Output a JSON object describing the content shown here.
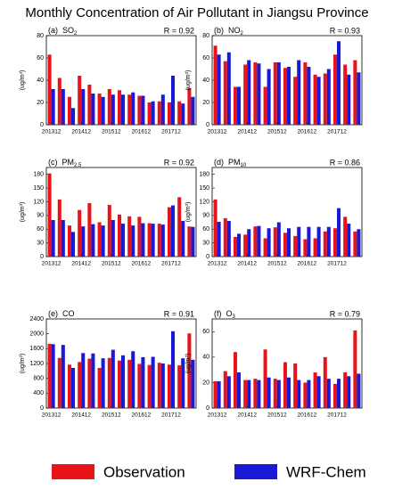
{
  "title": "Monthly Concentration of Air Pollutant in Jiangsu Province",
  "legend": [
    {
      "name": "Observation",
      "color": "#e8141b"
    },
    {
      "name": "WRF-Chem",
      "color": "#1a1ad6"
    }
  ],
  "chart_data": [
    {
      "type": "bar",
      "panel": "(a)",
      "species": "SO",
      "species_sub": "2",
      "r_label": "R = 0.92",
      "y_label": "(ug/m³)",
      "categories": [
        "201312",
        null,
        null,
        "201412",
        null,
        null,
        "201512",
        null,
        null,
        "201612",
        null,
        null,
        "201712",
        null,
        null
      ],
      "series": [
        {
          "values": [
            63,
            42,
            25,
            44,
            36,
            28,
            32,
            31,
            27,
            26,
            20,
            21,
            20,
            21,
            33
          ]
        },
        {
          "values": [
            32,
            32,
            15,
            32,
            28,
            25,
            27,
            27,
            29,
            26,
            21,
            27,
            44,
            19,
            25
          ]
        }
      ],
      "ylim": [
        0,
        80
      ],
      "yticks": [
        0,
        20,
        40,
        60,
        80
      ]
    },
    {
      "type": "bar",
      "panel": "(b)",
      "species": "NO",
      "species_sub": "2",
      "r_label": "R = 0.93",
      "y_label": "(ug/m³)",
      "categories": [
        "201312",
        null,
        null,
        "201412",
        null,
        null,
        "201512",
        null,
        null,
        "201612",
        null,
        null,
        "201712",
        null,
        null
      ],
      "series": [
        {
          "values": [
            71,
            57,
            34,
            54,
            56,
            34,
            56,
            51,
            43,
            56,
            45,
            46,
            63,
            54,
            58
          ]
        },
        {
          "values": [
            63,
            65,
            34,
            58,
            55,
            50,
            56,
            52,
            58,
            52,
            43,
            50,
            75,
            45,
            47
          ]
        }
      ],
      "ylim": [
        0,
        80
      ],
      "yticks": [
        0,
        20,
        40,
        60,
        80
      ]
    },
    {
      "type": "bar",
      "panel": "(c)",
      "species": "PM",
      "species_sub": "2.5",
      "r_label": "R = 0.92",
      "y_label": "(ug/m³)",
      "categories": [
        "201312",
        null,
        null,
        "201412",
        null,
        null,
        "201512",
        null,
        null,
        "201612",
        null,
        null,
        "201712",
        null,
        null
      ],
      "series": [
        {
          "values": [
            182,
            125,
            68,
            102,
            117,
            75,
            113,
            92,
            88,
            87,
            73,
            72,
            108,
            130,
            66
          ]
        },
        {
          "values": [
            80,
            80,
            54,
            66,
            71,
            68,
            80,
            72,
            68,
            73,
            72,
            70,
            112,
            78,
            65
          ]
        }
      ],
      "ylim": [
        0,
        195
      ],
      "yticks": [
        0,
        30,
        60,
        90,
        120,
        150,
        180
      ]
    },
    {
      "type": "bar",
      "panel": "(d)",
      "species": "PM",
      "species_sub": "10",
      "r_label": "R = 0.86",
      "y_label": "(ug/m³)",
      "categories": [
        "201312",
        null,
        null,
        "201412",
        null,
        null,
        "201512",
        null,
        null,
        "201612",
        null,
        null,
        "201712",
        null,
        null
      ],
      "series": [
        {
          "values": [
            125,
            84,
            43,
            48,
            66,
            40,
            64,
            52,
            45,
            38,
            40,
            55,
            62,
            87,
            55
          ]
        },
        {
          "values": [
            76,
            78,
            50,
            60,
            67,
            62,
            75,
            62,
            65,
            65,
            65,
            65,
            106,
            72,
            60
          ]
        }
      ],
      "ylim": [
        0,
        195
      ],
      "yticks": [
        0,
        30,
        60,
        90,
        120,
        150,
        180
      ]
    },
    {
      "type": "bar",
      "panel": "(e)",
      "species": "CO",
      "species_sub": null,
      "r_label": "R = 0.91",
      "y_label": "(ug/m³)",
      "categories": [
        "201312",
        null,
        null,
        "201412",
        null,
        null,
        "201512",
        null,
        null,
        "201612",
        null,
        null,
        "201712",
        null,
        null
      ],
      "series": [
        {
          "values": [
            1730,
            1350,
            1170,
            1240,
            1330,
            1080,
            1350,
            1280,
            1300,
            1190,
            1160,
            1220,
            1170,
            1150,
            2010
          ]
        },
        {
          "values": [
            1720,
            1700,
            1080,
            1480,
            1470,
            1340,
            1570,
            1420,
            1530,
            1370,
            1380,
            1200,
            2070,
            1340,
            1300
          ]
        }
      ],
      "ylim": [
        0,
        2400
      ],
      "yticks": [
        0,
        400,
        800,
        1200,
        1600,
        2000,
        2400
      ]
    },
    {
      "type": "bar",
      "panel": "(f)",
      "species": "O",
      "species_sub": "3",
      "r_label": "R = 0.79",
      "y_label": "(ug/m³)",
      "categories": [
        "201312",
        null,
        null,
        "201412",
        null,
        null,
        "201512",
        null,
        null,
        "201612",
        null,
        null,
        "201712",
        null,
        null
      ],
      "series": [
        {
          "values": [
            21,
            29,
            44,
            22,
            23,
            46,
            23,
            36,
            35,
            20,
            28,
            40,
            19,
            28,
            61
          ]
        },
        {
          "values": [
            21,
            25,
            28,
            22,
            22,
            24,
            22,
            24,
            22,
            22,
            25,
            23,
            23,
            25,
            27
          ]
        }
      ],
      "ylim": [
        0,
        70
      ],
      "yticks": [
        0,
        20,
        40,
        60
      ]
    }
  ]
}
